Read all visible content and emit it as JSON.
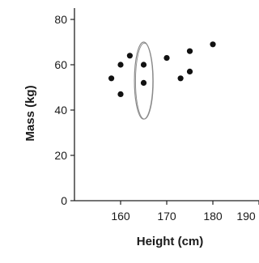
{
  "chart_data": {
    "type": "scatter",
    "title": "",
    "xlabel": "Height (cm)",
    "ylabel": "Mass (kg)",
    "xlim": [
      150,
      190
    ],
    "ylim": [
      0,
      85
    ],
    "x_ticks": [
      "160",
      "170",
      "180",
      "190"
    ],
    "y_ticks": [
      "0",
      "20",
      "40",
      "60",
      "80"
    ],
    "grid": false,
    "legend": "none",
    "points": [
      {
        "x": 158,
        "y": 54
      },
      {
        "x": 160,
        "y": 60
      },
      {
        "x": 160,
        "y": 47
      },
      {
        "x": 162,
        "y": 64
      },
      {
        "x": 165,
        "y": 60
      },
      {
        "x": 165,
        "y": 52
      },
      {
        "x": 170,
        "y": 63
      },
      {
        "x": 173,
        "y": 54
      },
      {
        "x": 175,
        "y": 66
      },
      {
        "x": 175,
        "y": 57
      },
      {
        "x": 180,
        "y": 69
      }
    ],
    "annotation": {
      "shape": "ellipse",
      "x_center": 165,
      "y_center": 53,
      "x_radius": 2,
      "y_radius": 17,
      "color": "#8a8a8a"
    },
    "colors": {
      "points": "#111111",
      "axes": "#222222"
    }
  }
}
